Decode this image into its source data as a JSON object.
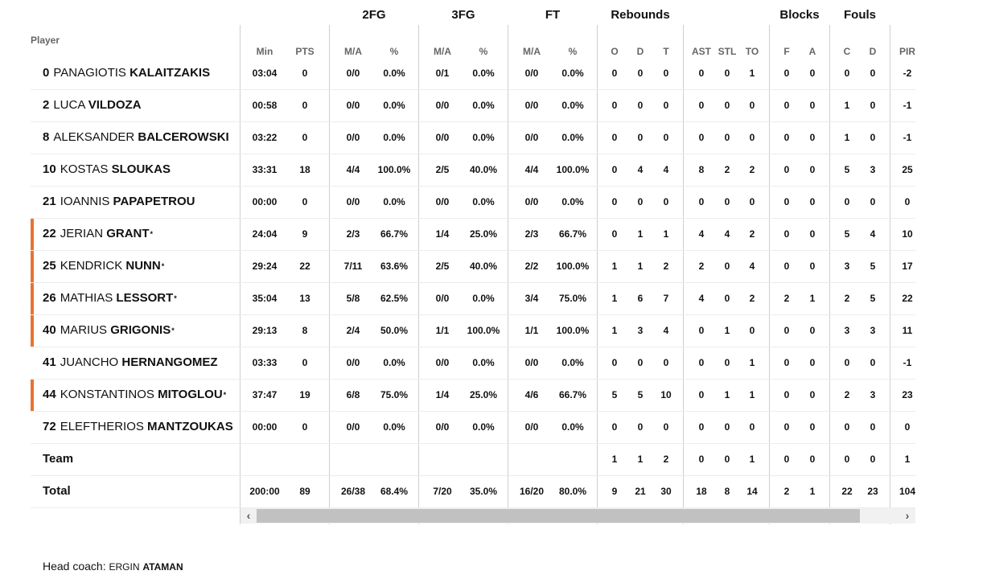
{
  "header": {
    "player_label": "Player",
    "groups": [
      "2FG",
      "3FG",
      "FT",
      "Rebounds",
      "Blocks",
      "Fouls"
    ],
    "columns": [
      "Min",
      "PTS",
      "M/A",
      "%",
      "M/A",
      "%",
      "M/A",
      "%",
      "O",
      "D",
      "T",
      "AST",
      "STL",
      "TO",
      "F",
      "A",
      "C",
      "D",
      "PIR"
    ]
  },
  "players": [
    {
      "num": "0",
      "first": "PANAGIOTIS",
      "last": "KALAITZAKIS",
      "starter": false,
      "stats": [
        "03:04",
        "0",
        "0/0",
        "0.0%",
        "0/1",
        "0.0%",
        "0/0",
        "0.0%",
        "0",
        "0",
        "0",
        "0",
        "0",
        "1",
        "0",
        "0",
        "0",
        "0",
        "-2"
      ]
    },
    {
      "num": "2",
      "first": "LUCA",
      "last": "VILDOZA",
      "starter": false,
      "stats": [
        "00:58",
        "0",
        "0/0",
        "0.0%",
        "0/0",
        "0.0%",
        "0/0",
        "0.0%",
        "0",
        "0",
        "0",
        "0",
        "0",
        "0",
        "0",
        "0",
        "1",
        "0",
        "-1"
      ]
    },
    {
      "num": "8",
      "first": "ALEKSANDER",
      "last": "BALCEROWSKI",
      "starter": false,
      "stats": [
        "03:22",
        "0",
        "0/0",
        "0.0%",
        "0/0",
        "0.0%",
        "0/0",
        "0.0%",
        "0",
        "0",
        "0",
        "0",
        "0",
        "0",
        "0",
        "0",
        "1",
        "0",
        "-1"
      ]
    },
    {
      "num": "10",
      "first": "KOSTAS",
      "last": "SLOUKAS",
      "starter": false,
      "stats": [
        "33:31",
        "18",
        "4/4",
        "100.0%",
        "2/5",
        "40.0%",
        "4/4",
        "100.0%",
        "0",
        "4",
        "4",
        "8",
        "2",
        "2",
        "0",
        "0",
        "5",
        "3",
        "25"
      ]
    },
    {
      "num": "21",
      "first": "IOANNIS",
      "last": "PAPAPETROU",
      "starter": false,
      "stats": [
        "00:00",
        "0",
        "0/0",
        "0.0%",
        "0/0",
        "0.0%",
        "0/0",
        "0.0%",
        "0",
        "0",
        "0",
        "0",
        "0",
        "0",
        "0",
        "0",
        "0",
        "0",
        "0"
      ]
    },
    {
      "num": "22",
      "first": "JERIAN",
      "last": "GRANT",
      "starter": true,
      "stats": [
        "24:04",
        "9",
        "2/3",
        "66.7%",
        "1/4",
        "25.0%",
        "2/3",
        "66.7%",
        "0",
        "1",
        "1",
        "4",
        "4",
        "2",
        "0",
        "0",
        "5",
        "4",
        "10"
      ]
    },
    {
      "num": "25",
      "first": "KENDRICK",
      "last": "NUNN",
      "starter": true,
      "stats": [
        "29:24",
        "22",
        "7/11",
        "63.6%",
        "2/5",
        "40.0%",
        "2/2",
        "100.0%",
        "1",
        "1",
        "2",
        "2",
        "0",
        "4",
        "0",
        "0",
        "3",
        "5",
        "17"
      ]
    },
    {
      "num": "26",
      "first": "MATHIAS",
      "last": "LESSORT",
      "starter": true,
      "stats": [
        "35:04",
        "13",
        "5/8",
        "62.5%",
        "0/0",
        "0.0%",
        "3/4",
        "75.0%",
        "1",
        "6",
        "7",
        "4",
        "0",
        "2",
        "2",
        "1",
        "2",
        "5",
        "22"
      ]
    },
    {
      "num": "40",
      "first": "MARIUS",
      "last": "GRIGONIS",
      "starter": true,
      "stats": [
        "29:13",
        "8",
        "2/4",
        "50.0%",
        "1/1",
        "100.0%",
        "1/1",
        "100.0%",
        "1",
        "3",
        "4",
        "0",
        "1",
        "0",
        "0",
        "0",
        "3",
        "3",
        "11"
      ]
    },
    {
      "num": "41",
      "first": "JUANCHO",
      "last": "HERNANGOMEZ",
      "starter": false,
      "stats": [
        "03:33",
        "0",
        "0/0",
        "0.0%",
        "0/0",
        "0.0%",
        "0/0",
        "0.0%",
        "0",
        "0",
        "0",
        "0",
        "0",
        "1",
        "0",
        "0",
        "0",
        "0",
        "-1"
      ]
    },
    {
      "num": "44",
      "first": "KONSTANTINOS",
      "last": "MITOGLOU",
      "starter": true,
      "stats": [
        "37:47",
        "19",
        "6/8",
        "75.0%",
        "1/4",
        "25.0%",
        "4/6",
        "66.7%",
        "5",
        "5",
        "10",
        "0",
        "1",
        "1",
        "0",
        "0",
        "2",
        "3",
        "23"
      ]
    },
    {
      "num": "72",
      "first": "ELEFTHERIOS",
      "last": "MANTZOUKAS",
      "starter": false,
      "stats": [
        "00:00",
        "0",
        "0/0",
        "0.0%",
        "0/0",
        "0.0%",
        "0/0",
        "0.0%",
        "0",
        "0",
        "0",
        "0",
        "0",
        "0",
        "0",
        "0",
        "0",
        "0",
        "0"
      ]
    }
  ],
  "team_row": {
    "label": "Team",
    "stats": [
      "",
      "",
      "",
      "",
      "",
      "",
      "",
      "",
      "1",
      "1",
      "2",
      "0",
      "0",
      "1",
      "0",
      "0",
      "0",
      "0",
      "1"
    ]
  },
  "total_row": {
    "label": "Total",
    "stats": [
      "200:00",
      "89",
      "26/38",
      "68.4%",
      "7/20",
      "35.0%",
      "16/20",
      "80.0%",
      "9",
      "21",
      "30",
      "18",
      "8",
      "14",
      "2",
      "1",
      "22",
      "23",
      "104"
    ]
  },
  "star_mark": "*",
  "coach": {
    "label": "Head coach:",
    "first": "ERGIN",
    "last": "ATAMAN"
  },
  "scroll": {
    "left_icon": "chevron-left-icon",
    "right_icon": "chevron-right-icon"
  },
  "colors": {
    "row_accent": "#e8742e",
    "separator": "#cfcfcf"
  }
}
